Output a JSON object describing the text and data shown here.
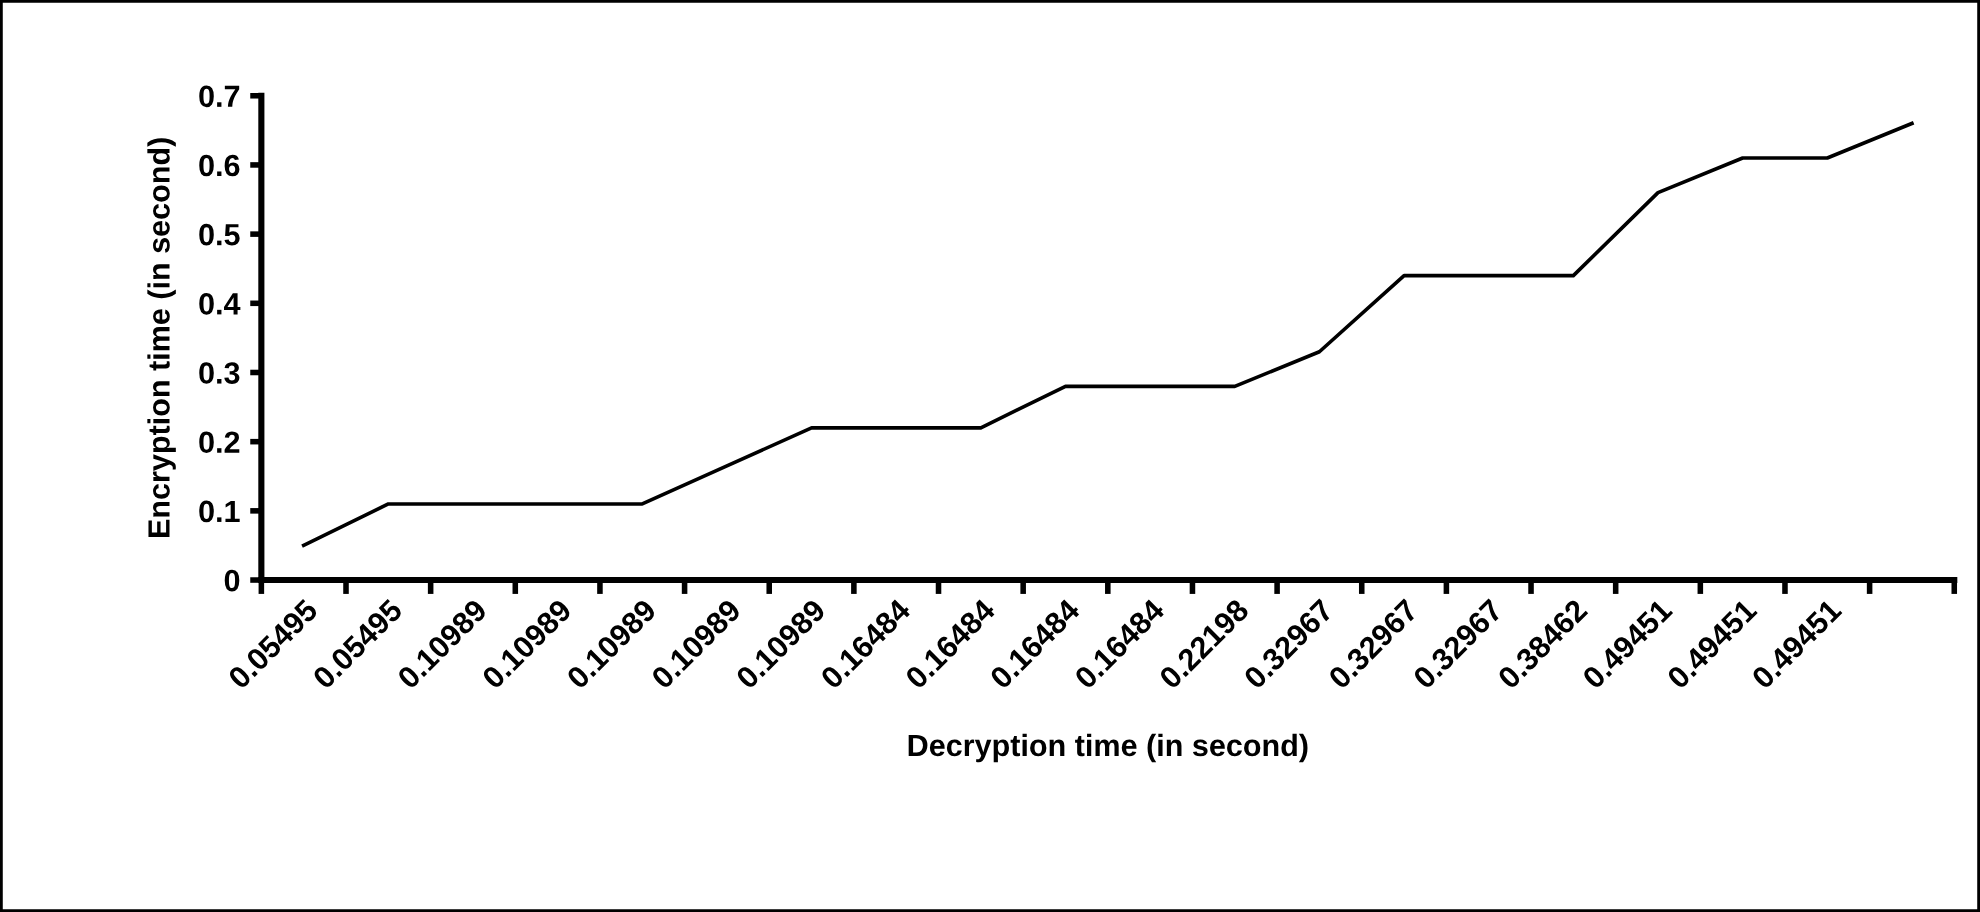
{
  "chart_data": {
    "type": "line",
    "xlabel": "Decryption time (in second)",
    "ylabel": "Encryption time (in second)",
    "categories": [
      "0.05495",
      "0.05495",
      "0.10989",
      "0.10989",
      "0.10989",
      "0.10989",
      "0.10989",
      "0.16484",
      "0.16484",
      "0.16484",
      "0.16484",
      "0.22198",
      "0.32967",
      "0.32967",
      "0.32967",
      "0.38462",
      "0.49451",
      "0.49451",
      "0.49451",
      null
    ],
    "series": [
      {
        "color": "#000000",
        "values": [
          0.05,
          0.11,
          0.11,
          0.11,
          0.11,
          0.165,
          0.22,
          0.22,
          0.22,
          0.28,
          0.28,
          0.28,
          0.33,
          0.44,
          0.44,
          0.44,
          0.56,
          0.61,
          0.61,
          0.66
        ]
      }
    ],
    "ylim": [
      0,
      0.7
    ],
    "yticks": [
      0,
      0.1,
      0.2,
      0.3,
      0.4,
      0.5,
      0.6,
      0.7
    ],
    "grid": false,
    "marker": "none",
    "line_style": "solid"
  }
}
